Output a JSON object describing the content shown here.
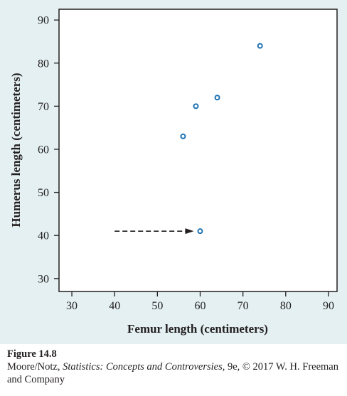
{
  "chart_data": {
    "type": "scatter",
    "xlabel": "Femur length (centimeters)",
    "ylabel": "Humerus length (centimeters)",
    "xlim": [
      27,
      92
    ],
    "ylim": [
      27,
      92.5
    ],
    "xticks": [
      30,
      40,
      50,
      60,
      70,
      80,
      90
    ],
    "yticks": [
      30,
      40,
      50,
      60,
      70,
      80,
      90
    ],
    "points": [
      {
        "x": 56,
        "y": 63
      },
      {
        "x": 59,
        "y": 70
      },
      {
        "x": 64,
        "y": 72
      },
      {
        "x": 74,
        "y": 84
      },
      {
        "x": 60,
        "y": 41
      }
    ],
    "annotation": {
      "type": "dashed-arrow",
      "from": {
        "x": 40,
        "y": 41
      },
      "to": {
        "x": 58.5,
        "y": 41
      }
    },
    "grid": false,
    "colors": {
      "point": "#1e73b4",
      "axis": "#231f20",
      "panel": "#e4f0f2"
    }
  },
  "caption": {
    "figure_label": "Figure 14.8",
    "credit_prefix": "Moore/Notz, ",
    "book_title": "Statistics: Concepts and Controversies",
    "credit_suffix": ", 9e, © 2017 W. H. Freeman and Company"
  }
}
